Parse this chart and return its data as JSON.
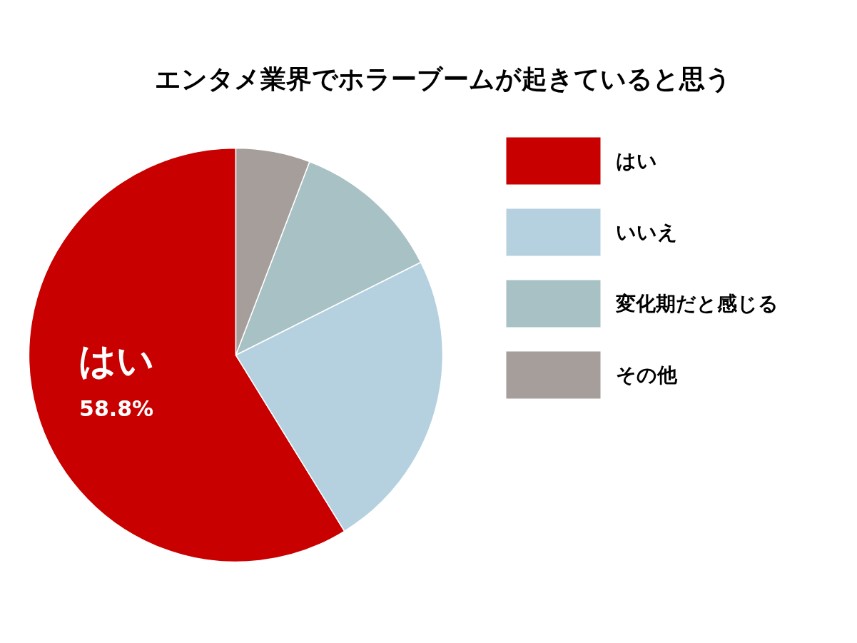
{
  "chart_data": {
    "type": "pie",
    "title": "エンタメ業界でホラーブームが起きていると思う",
    "categories": [
      "はい",
      "いいえ",
      "変化期だと感じる",
      "その他"
    ],
    "values": [
      58.8,
      23.6,
      11.8,
      5.8
    ],
    "colors": [
      "#c80000",
      "#b5d1df",
      "#a8c1c4",
      "#a69e9b"
    ],
    "value_labels": [
      "58.8%",
      null,
      null,
      null
    ],
    "legend": "right"
  }
}
